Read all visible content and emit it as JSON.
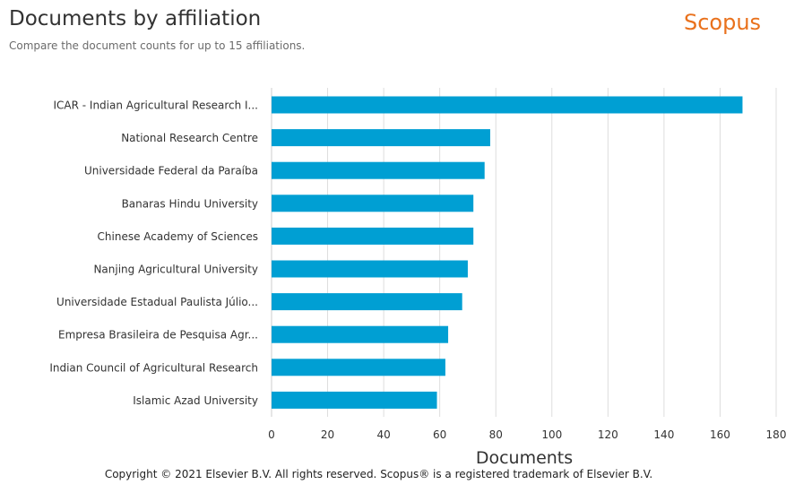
{
  "header": {
    "title": "Documents by affiliation",
    "subtitle": "Compare the document counts for up to 15 affiliations.",
    "brand": "Scopus"
  },
  "footer": {
    "copyright": "Copyright © 2021 Elsevier B.V. All rights reserved. Scopus® is a registered trademark of Elsevier B.V."
  },
  "colors": {
    "bar": "#009fd3",
    "brand": "#e9711c",
    "grid": "#dddddd"
  },
  "chart_data": {
    "type": "bar",
    "orientation": "horizontal",
    "categories": [
      "ICAR - Indian Agricultural Research I...",
      "National Research Centre",
      "Universidade Federal da Paraíba",
      "Banaras Hindu University",
      "Chinese Academy of Sciences",
      "Nanjing Agricultural University",
      "Universidade Estadual Paulista Júlio...",
      "Empresa Brasileira de Pesquisa Agr...",
      "Indian Council of Agricultural Research",
      "Islamic Azad University"
    ],
    "values": [
      168,
      78,
      76,
      72,
      72,
      70,
      68,
      63,
      62,
      59
    ],
    "xlabel": "Documents",
    "ylabel": "",
    "xlim": [
      0,
      180
    ],
    "xticks": [
      0,
      20,
      40,
      60,
      80,
      100,
      120,
      140,
      160,
      180
    ],
    "grid": "vertical",
    "legend": "none"
  }
}
